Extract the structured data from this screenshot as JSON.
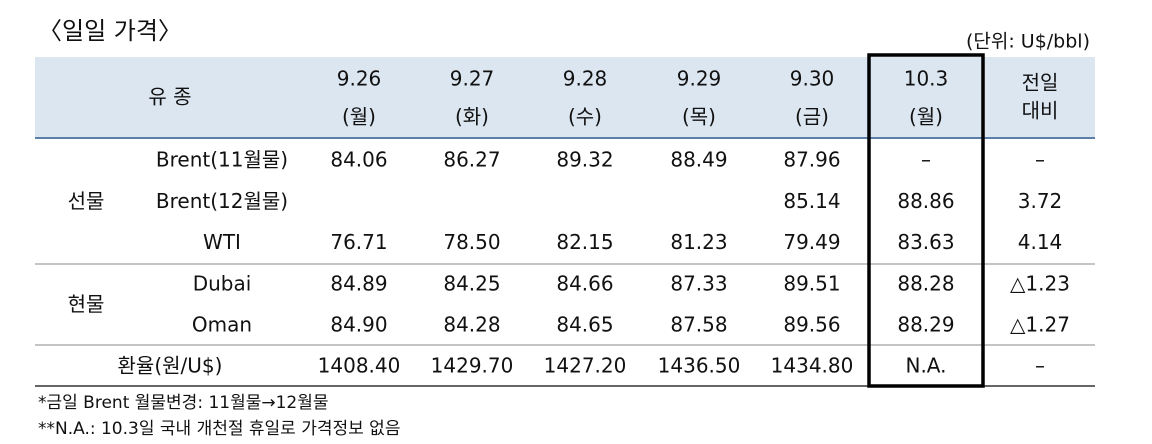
{
  "title": "〈일일 가격〉",
  "unit": "(단위: U$/bbl)",
  "table": {
    "header": {
      "product": "유 종",
      "dates": [
        {
          "date": "9.26",
          "day": "(월)"
        },
        {
          "date": "9.27",
          "day": "(화)"
        },
        {
          "date": "9.28",
          "day": "(수)"
        },
        {
          "date": "9.29",
          "day": "(목)"
        },
        {
          "date": "9.30",
          "day": "(금)"
        },
        {
          "date": "10.3",
          "day": "(월)"
        }
      ],
      "change": [
        "전일",
        "대비"
      ]
    },
    "groups": [
      {
        "label": "선물",
        "rows": [
          {
            "name": "Brent(11월물)",
            "values": [
              "84.06",
              "86.27",
              "89.32",
              "88.49",
              "87.96",
              "–",
              "–"
            ]
          },
          {
            "name": "Brent(12월물)",
            "values": [
              null,
              null,
              null,
              null,
              "85.14",
              "88.86",
              "3.72"
            ]
          },
          {
            "name": "WTI",
            "values": [
              "76.71",
              "78.50",
              "82.15",
              "81.23",
              "79.49",
              "83.63",
              "4.14"
            ]
          }
        ]
      },
      {
        "label": "현물",
        "rows": [
          {
            "name": "Dubai",
            "values": [
              "84.89",
              "84.25",
              "84.66",
              "87.33",
              "89.51",
              "88.28",
              "△1.23"
            ]
          },
          {
            "name": "Oman",
            "values": [
              "84.90",
              "84.28",
              "84.65",
              "87.58",
              "89.56",
              "88.29",
              "△1.27"
            ]
          }
        ]
      }
    ],
    "fx": {
      "label": "환율(원/U$)",
      "values": [
        "1408.40",
        "1429.70",
        "1427.20",
        "1436.50",
        "1434.80",
        "N.A.",
        "–"
      ]
    }
  },
  "footnotes": [
    "*금일 Brent 월물변경: 11월물→12월물",
    "**N.A.: 10.3일 국내 개천절 휴일로 가격정보 없음"
  ]
}
